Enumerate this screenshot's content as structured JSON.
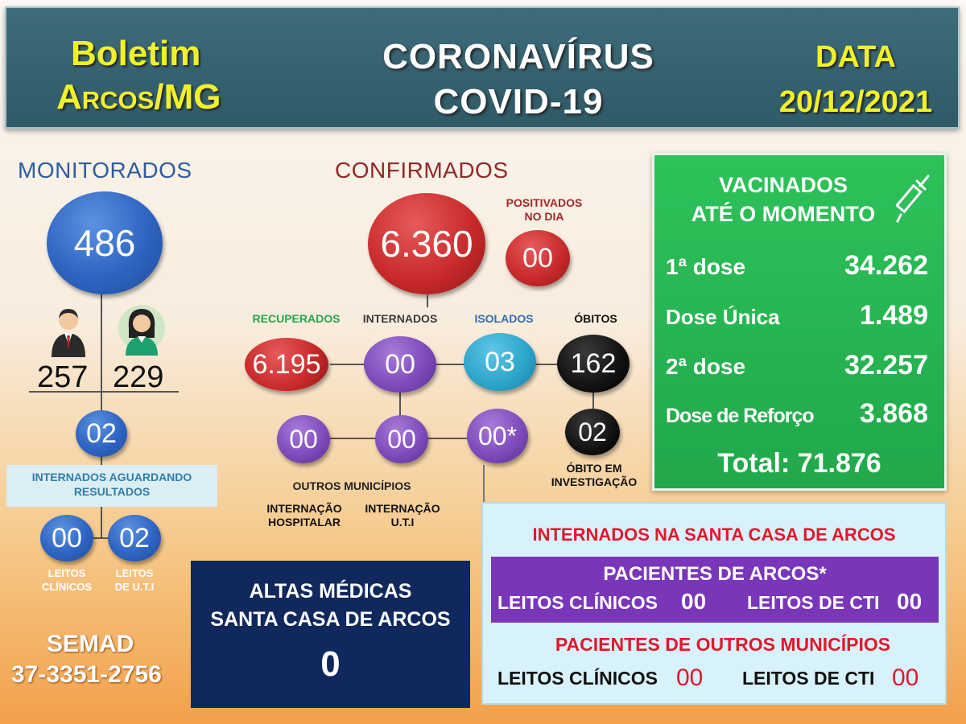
{
  "header": {
    "left_line1": "Boletim",
    "left_line2": "Arcos/MG",
    "center_line1": "CORONAVÍRUS",
    "center_line2": "COVID-19",
    "date_label": "DATA",
    "date_value": "20/12/2021"
  },
  "monitorados": {
    "title": "MONITORADOS",
    "total": "486",
    "men": "257",
    "women": "229",
    "internados_aguardando": "02",
    "internados_label_line1": "INTERNADOS AGUARDANDO",
    "internados_label_line2": "RESULTADOS",
    "leitos_clinicos": "00",
    "leitos_uti": "02",
    "leitos_clinicos_label_line1": "LEITOS",
    "leitos_clinicos_label_line2": "CLÍNICOS",
    "leitos_uti_label_line1": "LEITOS",
    "leitos_uti_label_line2": "DE U.T.I"
  },
  "confirmados": {
    "title": "CONFIRMADOS",
    "total": "6.360",
    "positivados_label_line1": "POSITIVADOS",
    "positivados_label_line2": "NO DIA",
    "positivados_value": "00",
    "recuperados_label": "RECUPERADOS",
    "recuperados_value": "6.195",
    "internados_label": "INTERNADOS",
    "internados_value": "00",
    "isolados_label": "ISOLADOS",
    "isolados_value": "03",
    "obitos_label": "ÓBITOS",
    "obitos_value": "162",
    "obito_investigacao_value": "02",
    "obito_investigacao_label_line1": "ÓBITO EM",
    "obito_investigacao_label_line2": "INVESTIGAÇÃO",
    "outros_municipios_value": "00",
    "internacao_hospitalar_value": "00",
    "internacao_uti_value": "00*",
    "outros_municipios_label": "OUTROS MUNICÍPIOS",
    "internacao_hospitalar_label_line1": "INTERNAÇÃO",
    "internacao_hospitalar_label_line2": "HOSPITALAR",
    "internacao_uti_label_line1": "INTERNAÇÃO",
    "internacao_uti_label_line2": "U.T.I"
  },
  "vacinados": {
    "title_line1": "VACINADOS",
    "title_line2": "ATÉ O MOMENTO",
    "rows": [
      {
        "label": "1ª dose",
        "value": "34.262"
      },
      {
        "label": "Dose Única",
        "value": "1.489"
      },
      {
        "label": "2ª dose",
        "value": "32.257"
      },
      {
        "label": "Dose de Reforço",
        "value": "3.868"
      }
    ],
    "total": "Total: 71.876"
  },
  "semad": {
    "name": "SEMAD",
    "phone": "37-3351-2756"
  },
  "altas": {
    "line1": "ALTAS MÉDICAS",
    "line2": "SANTA CASA DE ARCOS",
    "value": "0"
  },
  "santa_casa": {
    "title": "INTERNADOS NA SANTA CASA DE ARCOS",
    "arcos_title": "PACIENTES DE ARCOS*",
    "arcos_clinicos_label": "LEITOS CLÍNICOS",
    "arcos_clinicos_value": "00",
    "arcos_cti_label": "LEITOS DE CTI",
    "arcos_cti_value": "00",
    "outros_title": "PACIENTES DE OUTROS MUNICÍPIOS",
    "outros_clinicos_label": "LEITOS CLÍNICOS",
    "outros_clinicos_value": "00",
    "outros_cti_label": "LEITOS DE CTI",
    "outros_cti_value": "00"
  },
  "colors": {
    "header_bg": "#2f5a68",
    "yellow": "#f1f12a",
    "green": "#21a84a",
    "navy": "#10285c",
    "red_text": "#e3172b",
    "purple": "#7a36b8"
  }
}
